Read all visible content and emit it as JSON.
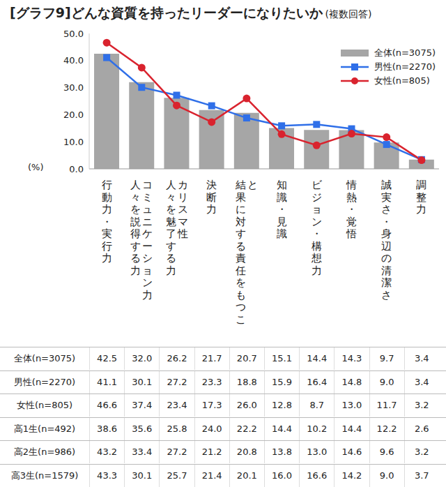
{
  "chart_data": {
    "type": "bar",
    "title": "[グラフ9]どんな資質を持ったリーダーになりたいか",
    "subtitle": "(複数回答)",
    "y_label": "(%)",
    "categories": [
      "行動力・実行力",
      "人々を説得する力\nコミュニケーション力",
      "人々を魅了する力\nカリスマ性",
      "決断力",
      "結果に対する責任をもつこと",
      "知識・見識",
      "ビジョン・構想力",
      "情熱・覚悟",
      "誠実さ・身辺の清潔さ",
      "調整力"
    ],
    "series": [
      {
        "name": "全体(n=3075)",
        "type": "bar",
        "color": "#a6a6a6",
        "values": [
          42.5,
          32.0,
          26.2,
          21.7,
          20.7,
          15.1,
          14.4,
          14.3,
          9.7,
          3.4
        ],
        "value_labels": [
          "42.5",
          "32.0",
          "26.2",
          "21.7",
          "20.7",
          "15.1",
          "14.4",
          "14.3",
          "9.7",
          "3.4"
        ]
      },
      {
        "name": "男性(n=2270)",
        "type": "line",
        "color": "#2f6fe8",
        "marker": "square",
        "values": [
          41.1,
          30.1,
          27.2,
          23.3,
          18.8,
          15.9,
          16.4,
          14.8,
          9.0,
          3.4
        ],
        "value_labels": [
          "41.1",
          "30.1",
          "27.2",
          "23.3",
          "18.8",
          "15.9",
          "16.4",
          "14.8",
          "9.0",
          "3.4"
        ]
      },
      {
        "name": "女性(n=805)",
        "type": "line",
        "color": "#d9232e",
        "marker": "circle",
        "values": [
          46.6,
          37.4,
          23.4,
          17.3,
          26.0,
          12.8,
          8.7,
          13.0,
          11.7,
          3.2
        ],
        "value_labels": [
          "46.6",
          "37.4",
          "23.4",
          "17.3",
          "26.0",
          "12.8",
          "8.7",
          "13.0",
          "11.7",
          "3.2"
        ]
      }
    ],
    "ylim": [
      0,
      50
    ],
    "yticks": [
      {
        "value": 0,
        "label": "0.0"
      },
      {
        "value": 10,
        "label": "10.0"
      },
      {
        "value": 20,
        "label": "20.0"
      },
      {
        "value": 30,
        "label": "30.0"
      },
      {
        "value": 40,
        "label": "40.0"
      },
      {
        "value": 50,
        "label": "50.0"
      }
    ],
    "grid": false,
    "legend": "upper right"
  },
  "table": {
    "rows": [
      {
        "label": "高1生(n=492)",
        "values": [
          "38.6",
          "35.6",
          "25.8",
          "24.0",
          "22.2",
          "14.4",
          "10.2",
          "14.4",
          "12.2",
          "2.6"
        ]
      },
      {
        "label": "高2生(n=986)",
        "values": [
          "43.2",
          "33.4",
          "27.2",
          "21.2",
          "20.8",
          "13.8",
          "13.0",
          "14.6",
          "9.6",
          "3.2"
        ]
      },
      {
        "label": "高3生(n=1579)",
        "values": [
          "43.3",
          "30.1",
          "25.7",
          "21.4",
          "20.1",
          "16.0",
          "16.6",
          "14.2",
          "9.0",
          "3.7"
        ]
      }
    ]
  }
}
